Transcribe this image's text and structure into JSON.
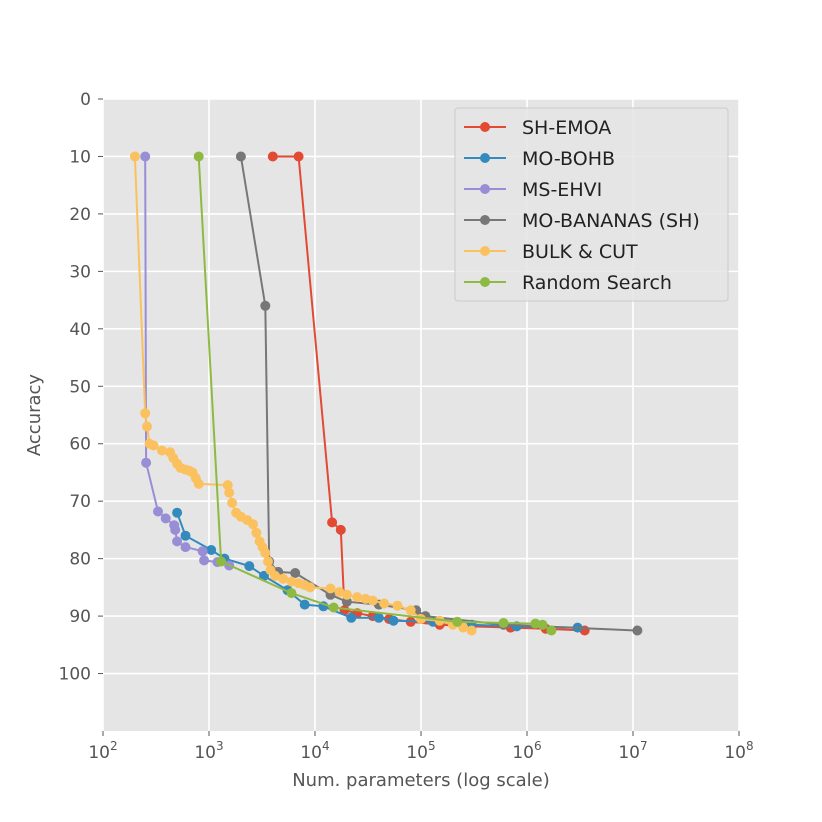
{
  "chart_data": {
    "type": "line",
    "title": "",
    "xlabel": "Num. parameters (log scale)",
    "ylabel": "Accuracy",
    "x_scale": "log",
    "xlim": [
      100,
      100000000
    ],
    "ylim": [
      0,
      110
    ],
    "y_inverted": true,
    "x_ticks": [
      {
        "value": 100,
        "base": "10",
        "exp": "2"
      },
      {
        "value": 1000,
        "base": "10",
        "exp": "3"
      },
      {
        "value": 10000,
        "base": "10",
        "exp": "4"
      },
      {
        "value": 100000,
        "base": "10",
        "exp": "5"
      },
      {
        "value": 1000000,
        "base": "10",
        "exp": "6"
      },
      {
        "value": 10000000,
        "base": "10",
        "exp": "7"
      },
      {
        "value": 100000000,
        "base": "10",
        "exp": "8"
      }
    ],
    "y_ticks": [
      0,
      10,
      20,
      30,
      40,
      50,
      60,
      70,
      80,
      90,
      100
    ],
    "grid": true,
    "legend_position": "top-right",
    "series": [
      {
        "name": "SH-EMOA",
        "color": "#e24a33",
        "points": [
          [
            4000,
            10
          ],
          [
            7000,
            10
          ],
          [
            14500,
            73.7
          ],
          [
            17500,
            75
          ],
          [
            19000,
            89
          ],
          [
            25000,
            89.5
          ],
          [
            35000,
            90
          ],
          [
            50000,
            90.5
          ],
          [
            80000,
            91
          ],
          [
            150000,
            91.5
          ],
          [
            300000,
            91.8
          ],
          [
            700000,
            92
          ],
          [
            1500000,
            92.2
          ],
          [
            3500000,
            92.5
          ]
        ]
      },
      {
        "name": "MO-BOHB",
        "color": "#348abd",
        "points": [
          [
            500,
            72
          ],
          [
            600,
            76
          ],
          [
            1050,
            78.5
          ],
          [
            1400,
            80
          ],
          [
            2400,
            81.3
          ],
          [
            3300,
            83
          ],
          [
            5500,
            85.5
          ],
          [
            8000,
            88
          ],
          [
            12000,
            88.3
          ],
          [
            22000,
            90.3
          ],
          [
            40000,
            90.3
          ],
          [
            55000,
            90.8
          ],
          [
            130000,
            91
          ],
          [
            300000,
            91.5
          ],
          [
            800000,
            91.8
          ],
          [
            3000000,
            92
          ]
        ]
      },
      {
        "name": "MS-EHVI",
        "color": "#988ed5",
        "points": [
          [
            250,
            10
          ],
          [
            255,
            63.3
          ],
          [
            330,
            71.8
          ],
          [
            390,
            73
          ],
          [
            470,
            74.2
          ],
          [
            480,
            75
          ],
          [
            500,
            77
          ],
          [
            600,
            78
          ],
          [
            870,
            78.7
          ],
          [
            900,
            80.3
          ],
          [
            1200,
            80.6
          ],
          [
            1550,
            81.2
          ]
        ]
      },
      {
        "name": "MO-BANANAS (SH)",
        "color": "#777777",
        "points": [
          [
            2000,
            10
          ],
          [
            3400,
            36
          ],
          [
            3700,
            80.5
          ],
          [
            4500,
            82.3
          ],
          [
            6500,
            82.5
          ],
          [
            14000,
            86.3
          ],
          [
            20000,
            87.5
          ],
          [
            40000,
            88
          ],
          [
            90000,
            89
          ],
          [
            110000,
            90
          ],
          [
            600000,
            91.5
          ],
          [
            11000000,
            92.5
          ]
        ]
      },
      {
        "name": "BULK & CUT",
        "color": "#fbc15e",
        "points": [
          [
            200,
            10
          ],
          [
            250,
            54.7
          ],
          [
            260,
            57
          ],
          [
            275,
            60
          ],
          [
            300,
            60.3
          ],
          [
            360,
            61.2
          ],
          [
            430,
            61.5
          ],
          [
            460,
            62.5
          ],
          [
            500,
            63.5
          ],
          [
            540,
            64.2
          ],
          [
            600,
            64.5
          ],
          [
            650,
            64.7
          ],
          [
            700,
            65
          ],
          [
            750,
            66
          ],
          [
            800,
            67
          ],
          [
            1500,
            67.2
          ],
          [
            1550,
            68.5
          ],
          [
            1650,
            70.3
          ],
          [
            1800,
            72
          ],
          [
            2000,
            72.7
          ],
          [
            2300,
            73.3
          ],
          [
            2600,
            74
          ],
          [
            2800,
            75.5
          ],
          [
            3000,
            77
          ],
          [
            3200,
            78
          ],
          [
            3400,
            79
          ],
          [
            3600,
            80.5
          ],
          [
            3800,
            82
          ],
          [
            4200,
            83
          ],
          [
            5000,
            83.5
          ],
          [
            6000,
            84
          ],
          [
            7000,
            84.3
          ],
          [
            8000,
            84.6
          ],
          [
            9000,
            85
          ],
          [
            14000,
            85.2
          ],
          [
            17000,
            85.8
          ],
          [
            20000,
            86.3
          ],
          [
            25000,
            86.7
          ],
          [
            30000,
            87
          ],
          [
            35000,
            87.3
          ],
          [
            45000,
            87.8
          ],
          [
            60000,
            88.2
          ],
          [
            80000,
            89
          ],
          [
            100000,
            90.5
          ],
          [
            150000,
            90.8
          ],
          [
            200000,
            91.5
          ],
          [
            250000,
            92
          ],
          [
            300000,
            92.5
          ]
        ]
      },
      {
        "name": "Random Search",
        "color": "#8eba42",
        "points": [
          [
            800,
            10
          ],
          [
            1300,
            80.5
          ],
          [
            6000,
            86
          ],
          [
            15000,
            88.5
          ],
          [
            220000,
            91
          ],
          [
            600000,
            91.2
          ],
          [
            1200000,
            91.3
          ],
          [
            1400000,
            91.5
          ],
          [
            1700000,
            92.5
          ]
        ]
      }
    ]
  }
}
